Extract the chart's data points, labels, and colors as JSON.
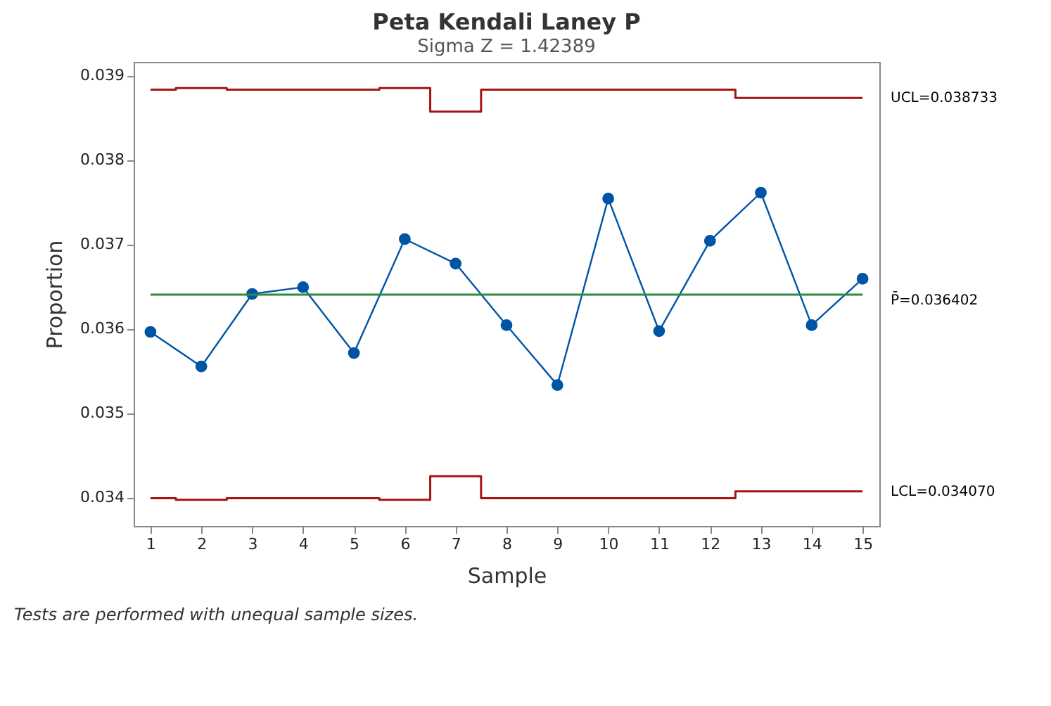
{
  "chart_data": {
    "type": "line",
    "title": "Peta Kendali Laney P",
    "subtitle": "Sigma Z = 1.42389",
    "xlabel": "Sample",
    "ylabel": "Proportion",
    "x": [
      1,
      2,
      3,
      4,
      5,
      6,
      7,
      8,
      9,
      10,
      11,
      12,
      13,
      14,
      15
    ],
    "series": [
      {
        "color": "#0054a6",
        "marker": "circle",
        "values": [
          0.03596,
          0.03555,
          0.03641,
          0.03649,
          0.03571,
          0.03706,
          0.03677,
          0.03604,
          0.03533,
          0.03754,
          0.03597,
          0.03704,
          0.03761,
          0.03604,
          0.03659
        ]
      },
      {
        "type": "step",
        "name": "UCL=0.038733",
        "color": "#a31515",
        "values": [
          0.03883,
          0.03885,
          0.03883,
          0.03883,
          0.03883,
          0.03885,
          0.03857,
          0.03883,
          0.03883,
          0.03883,
          0.03883,
          0.03883,
          0.038733,
          0.038733,
          0.038733
        ]
      },
      {
        "type": "step",
        "name": "LCL=0.034070",
        "color": "#a31515",
        "values": [
          0.03399,
          0.03397,
          0.03399,
          0.03399,
          0.03399,
          0.03397,
          0.03425,
          0.03399,
          0.03399,
          0.03399,
          0.03399,
          0.03399,
          0.03407,
          0.03407,
          0.03407
        ]
      }
    ],
    "ref_lines": [
      {
        "axis": "y",
        "value": 0.036402,
        "label": "P̄=0.036402",
        "color": "#2e8b3e"
      }
    ],
    "xlim": [
      0.67,
      15.33
    ],
    "xticks": [
      1,
      2,
      3,
      4,
      5,
      6,
      7,
      8,
      9,
      10,
      11,
      12,
      13,
      14,
      15
    ],
    "ylim": [
      0.03366,
      0.03916
    ],
    "yticks": [
      0.034,
      0.035,
      0.036,
      0.037,
      0.038,
      0.039
    ],
    "grid": false,
    "annotations": [
      "Tests are performed with unequal sample sizes."
    ]
  }
}
